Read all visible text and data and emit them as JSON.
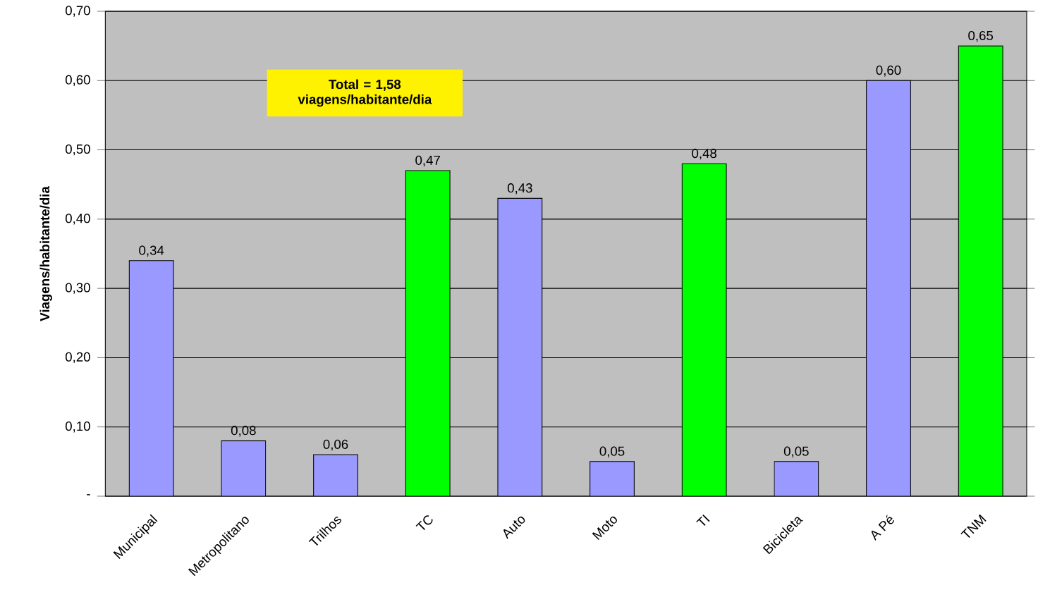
{
  "chart_data": {
    "type": "bar",
    "ylabel": "Viagens/habitante/dia",
    "categories": [
      "Municipal",
      "Metropolitano",
      "Trilhos",
      "TC",
      "Auto",
      "Moto",
      "TI",
      "Bicicleta",
      "A Pé",
      "TNM"
    ],
    "values": [
      0.34,
      0.08,
      0.06,
      0.47,
      0.43,
      0.05,
      0.48,
      0.05,
      0.6,
      0.65
    ],
    "colors": [
      "#9999ff",
      "#9999ff",
      "#9999ff",
      "#00ff00",
      "#9999ff",
      "#9999ff",
      "#00ff00",
      "#9999ff",
      "#9999ff",
      "#00ff00"
    ],
    "value_labels": [
      "0,34",
      "0,08",
      "0,06",
      "0,47",
      "0,43",
      "0,05",
      "0,48",
      "0,05",
      "0,60",
      "0,65"
    ],
    "ylim": [
      0,
      0.7
    ],
    "yticks": [
      {
        "value": 0,
        "label": "-"
      },
      {
        "value": 0.1,
        "label": "0,10"
      },
      {
        "value": 0.2,
        "label": "0,20"
      },
      {
        "value": 0.3,
        "label": "0,30"
      },
      {
        "value": 0.4,
        "label": "0,40"
      },
      {
        "value": 0.5,
        "label": "0,50"
      },
      {
        "value": 0.6,
        "label": "0,60"
      },
      {
        "value": 0.7,
        "label": "0,70"
      }
    ],
    "grid": "y",
    "annotations": [
      "Total = 1,58 viagens/habitante/dia"
    ]
  }
}
